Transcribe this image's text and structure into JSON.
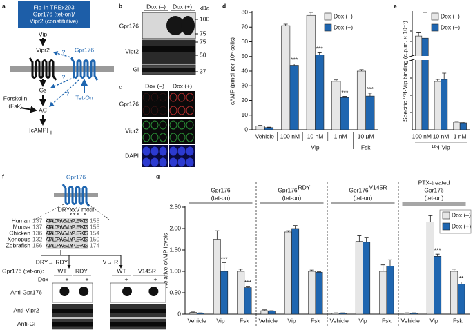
{
  "panels": {
    "a": {
      "label": "a",
      "box": [
        "Flp-In TREx293",
        "Gpr176 (tet-on)/",
        "Vipr2 (constitutive)"
      ],
      "vip": "Vip",
      "vipr2": "Vipr2",
      "gpr176": "Gpr176",
      "gs": "Gs",
      "ac": "AC",
      "camp": "[cAMP]",
      "camp_sub": "i",
      "teton": "Tet-On",
      "forskolin": [
        "Forskolin",
        "(Fsk)"
      ],
      "unknown": "?"
    },
    "b": {
      "label": "b",
      "dox": [
        "Dox (–)",
        "Dox (+)"
      ],
      "kda": "kDa",
      "rows": [
        "Gpr176",
        "Vipr2",
        "Gi"
      ],
      "markers": [
        100,
        75,
        75,
        50,
        37
      ]
    },
    "c": {
      "label": "c",
      "dox": [
        "Dox (–)",
        "Dox (+)"
      ],
      "rows": [
        "Gpr176",
        "Vipr2",
        "DAPI"
      ]
    },
    "d": {
      "label": "d"
    },
    "e": {
      "label": "e"
    },
    "f": {
      "label": "f",
      "protein": "Gpr176",
      "motif": "DRYxxV motif",
      "motif_stars": "*** *",
      "species": [
        "Human",
        "Mouse",
        "Chicken",
        "Xenopus",
        "Zebrafish"
      ],
      "start": [
        137,
        137,
        136,
        132,
        156
      ],
      "sequence": "ATALDRYVSVLYPLERKIS",
      "end": [
        155,
        155,
        154,
        150,
        174
      ],
      "mutations": [
        "DRY→ RDY",
        "V→ R"
      ],
      "construct": "Gpr176 (tet-on):",
      "lanes": [
        "WT",
        "RDY",
        "WT",
        "V145R"
      ],
      "dox": "Dox",
      "dox_signs": [
        "–",
        "+"
      ],
      "blots": [
        "Anti-Gpr176",
        "Anti-Vipr2",
        "Anti-Gi"
      ]
    },
    "g": {
      "label": "g",
      "headers": [
        [
          "Gpr176",
          "(tet-on)"
        ],
        [
          "Gpr176",
          "RDY",
          "(tet-on)"
        ],
        [
          "Gpr176",
          "V145R",
          "(tet-on)"
        ],
        [
          "PTX-treated",
          "Gpr176",
          "(tet-on)"
        ]
      ]
    }
  },
  "chart_data": [
    {
      "type": "bar",
      "ylabel": "cAMP (pmol per 10⁶ cells)",
      "categories": [
        "Vehicle",
        "100 nM",
        "10 nM",
        "1 nM",
        "10 µM"
      ],
      "groups": [
        "Vip",
        "Fsk"
      ],
      "ylim": [
        0,
        80
      ],
      "yticks": [
        0,
        10,
        20,
        30,
        40,
        50,
        60,
        70,
        80
      ],
      "legend": "upper right",
      "series": [
        {
          "name": "Dox (–)",
          "color": "#e6e6e6",
          "values": [
            2.5,
            71,
            78,
            33,
            40
          ],
          "errors": [
            0.5,
            1,
            2,
            1,
            1
          ]
        },
        {
          "name": "Dox (+)",
          "color": "#1f66b0",
          "values": [
            1.5,
            44,
            51,
            22,
            23
          ],
          "errors": [
            0.3,
            1,
            1.5,
            0.8,
            2
          ],
          "stars": [
            null,
            "***",
            "***",
            "***",
            "***"
          ]
        }
      ]
    },
    {
      "type": "bar",
      "ylabel": "Specific ¹²⁵I-Vip binding (c.p.m. × 10⁻³)",
      "xlabel": "¹²⁵I-Vip",
      "categories": [
        "100 nM",
        "10 nM",
        "1 nM"
      ],
      "ylim": [
        0,
        70
      ],
      "ybreak": [
        10,
        50
      ],
      "legend": "upper right",
      "series": [
        {
          "name": "Dox (–)",
          "color": "#e6e6e6",
          "values": [
            59,
            7,
            1.1
          ],
          "errors": [
            1.5,
            0.3,
            0.1
          ]
        },
        {
          "name": "Dox (+)",
          "color": "#1f66b0",
          "values": [
            58,
            7.3,
            1
          ],
          "errors": [
            12,
            0.9,
            0.1
          ]
        }
      ]
    },
    {
      "type": "bar",
      "ylabel": "Relative cAMP levels",
      "categories": [
        "Vehicle",
        "Vip",
        "Fsk",
        "Vehicle",
        "Vip",
        "Fsk",
        "Vehicle",
        "Vip",
        "Fsk",
        "Vehicle",
        "Vip",
        "Fsk"
      ],
      "ylim": [
        0,
        2.5
      ],
      "yticks": [
        0,
        {
          "value": 0.5,
          "label": "0.50"
        },
        {
          "value": 1,
          "label": "1.00"
        },
        {
          "value": 1.5,
          "label": "1.50"
        },
        {
          "value": 2,
          "label": "2.00"
        },
        {
          "value": 2.5,
          "label": "2.50"
        }
      ],
      "legend": "upper right",
      "series": [
        {
          "name": "Dox (–)",
          "color": "#e6e6e6",
          "values": [
            0.04,
            1.75,
            1.0,
            0.08,
            1.92,
            1.0,
            0.02,
            1.7,
            1.0,
            0.02,
            2.15,
            1.0
          ],
          "errors": [
            0.01,
            0.2,
            0.05,
            0.02,
            0.03,
            0.03,
            0.01,
            0.13,
            0.15,
            0.01,
            0.15,
            0.05
          ]
        },
        {
          "name": "Dox (+)",
          "color": "#1f66b0",
          "values": [
            0.02,
            1.0,
            0.62,
            0.07,
            2.0,
            0.98,
            0.02,
            1.68,
            1.12,
            0.02,
            1.35,
            0.7
          ],
          "errors": [
            0.01,
            0.2,
            0.03,
            0.01,
            0.07,
            0.01,
            0.01,
            0.1,
            0.15,
            0.01,
            0.05,
            0.05
          ],
          "stars": [
            null,
            "***",
            "***",
            null,
            null,
            null,
            null,
            null,
            null,
            null,
            "***",
            "**"
          ]
        }
      ]
    }
  ]
}
